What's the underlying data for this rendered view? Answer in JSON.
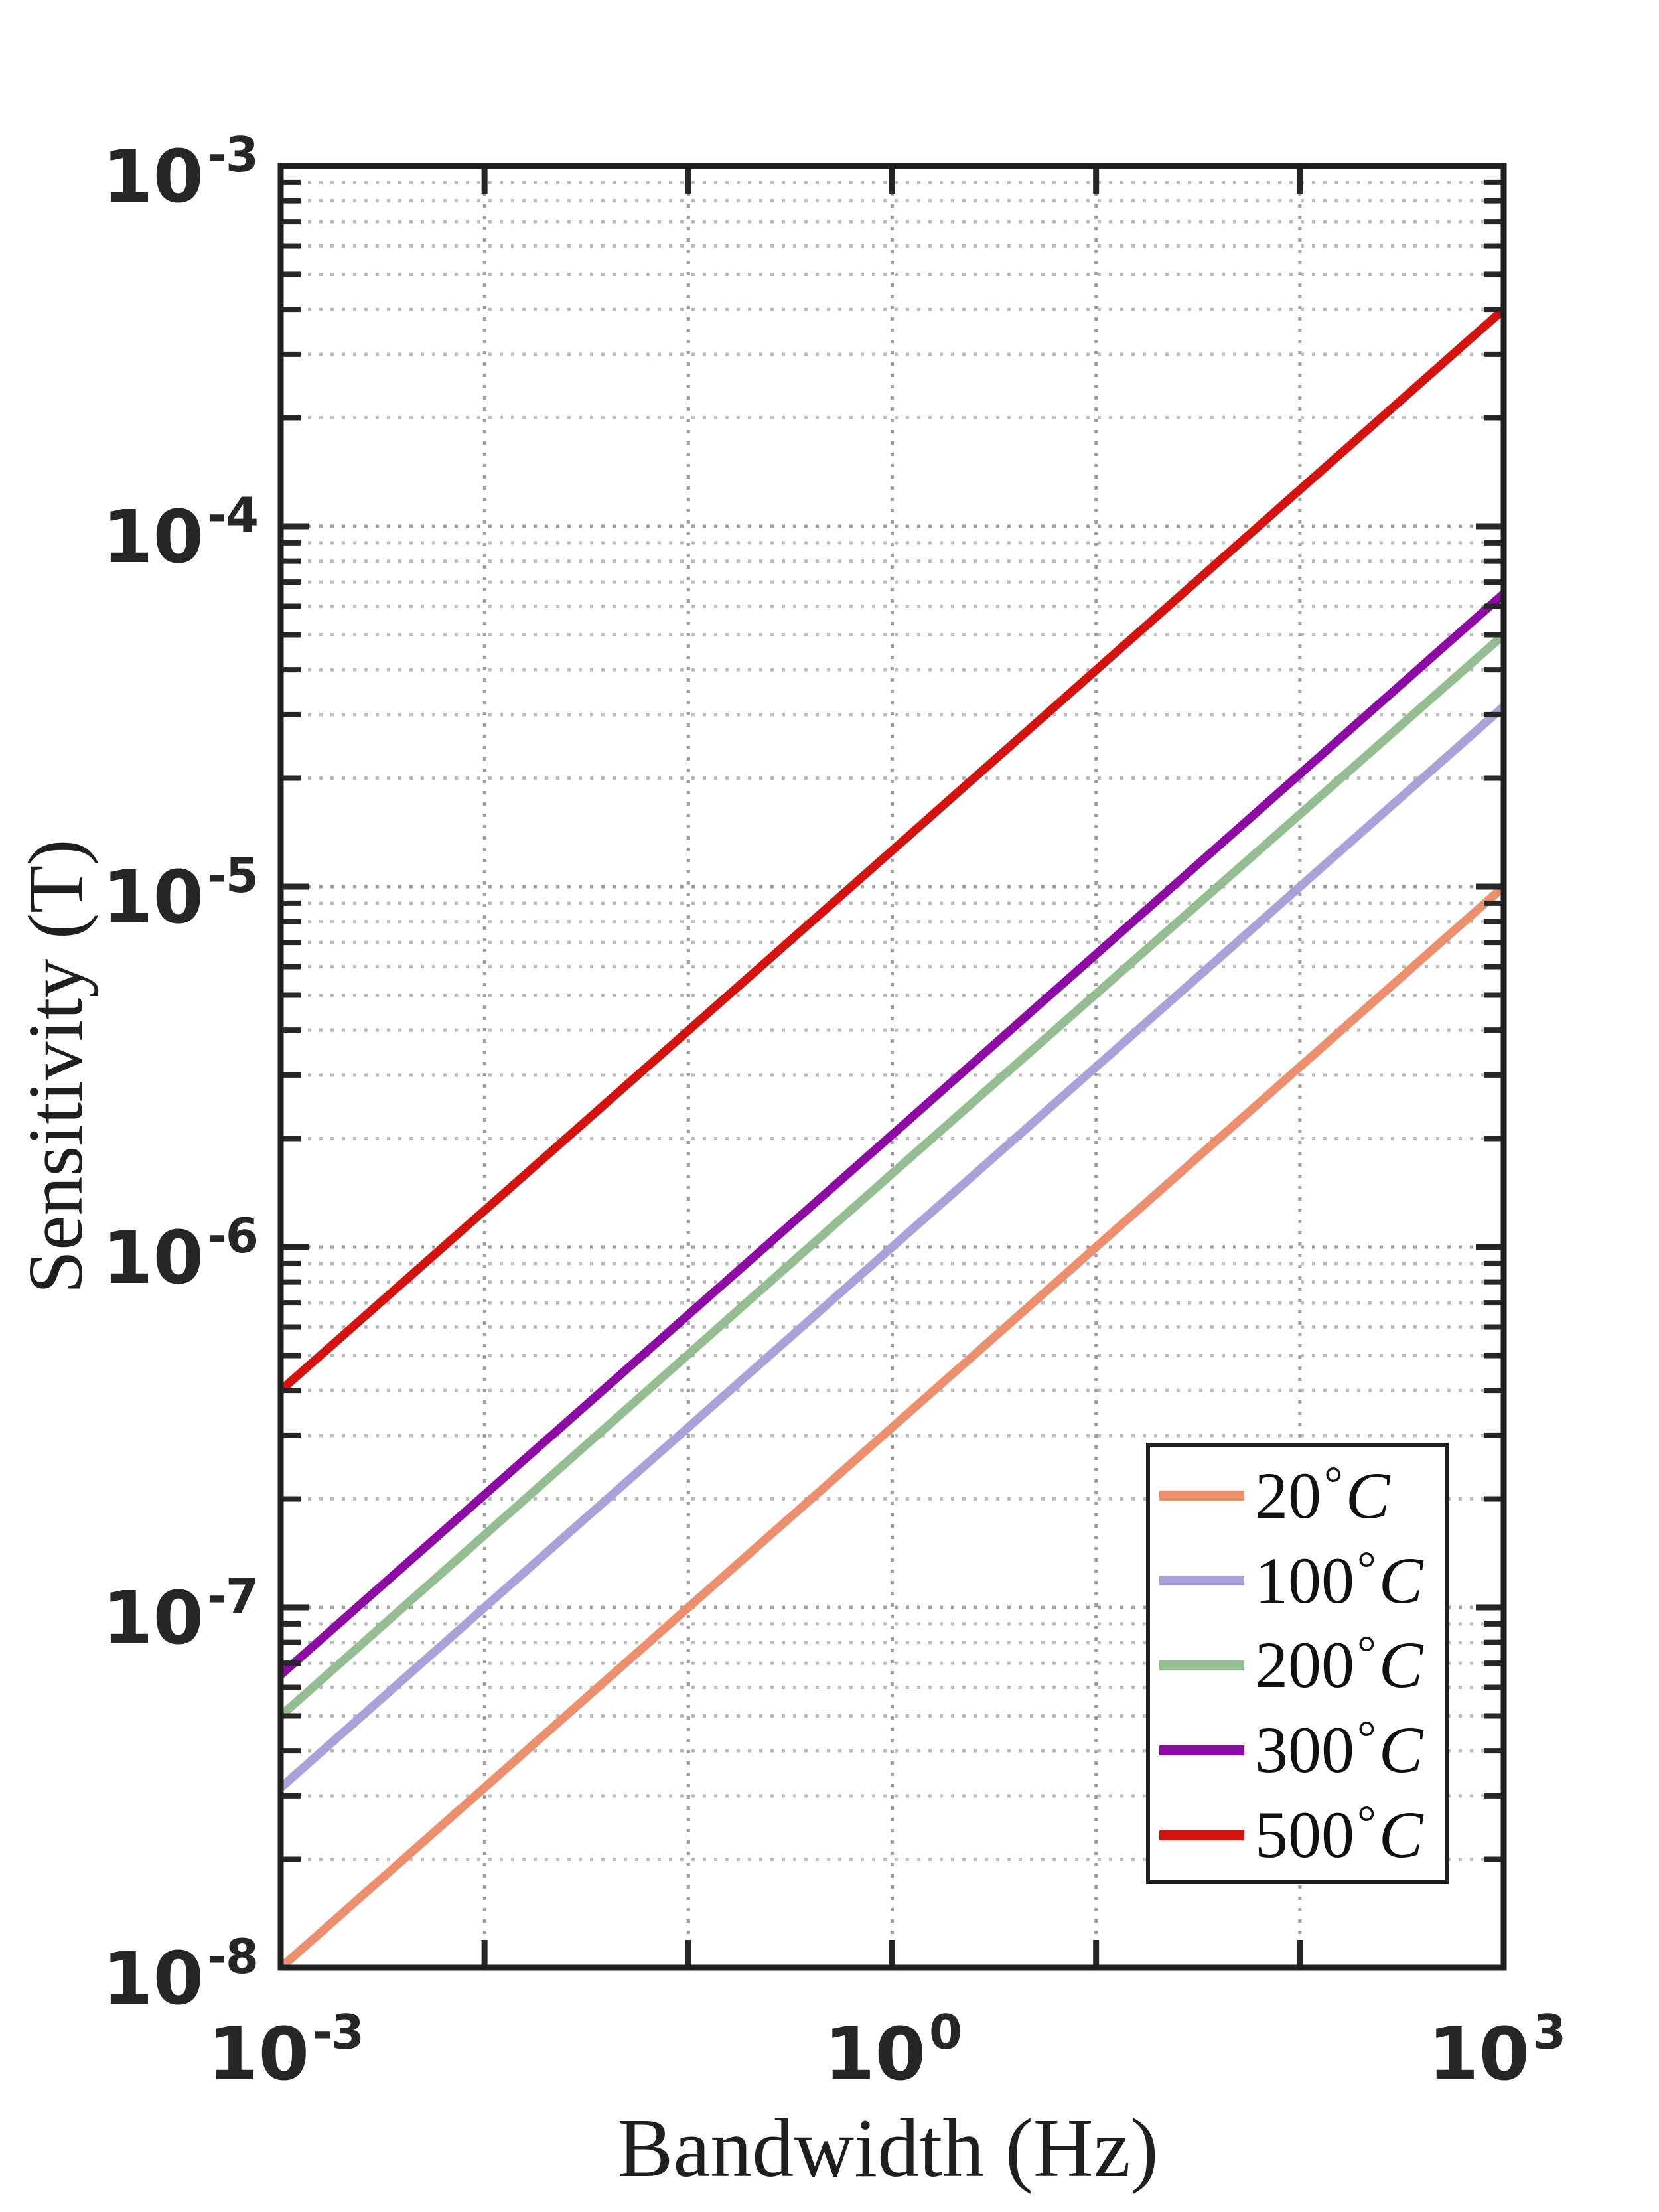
{
  "axes": {
    "x": {
      "label": "Bandwidth (Hz)",
      "ticks": [
        {
          "base": "10",
          "exp": "-3"
        },
        {
          "base": "10",
          "exp": "0"
        },
        {
          "base": "10",
          "exp": "3"
        }
      ]
    },
    "y": {
      "label": "Sensitivity (T)",
      "ticks": [
        {
          "base": "10",
          "exp": "-3"
        },
        {
          "base": "10",
          "exp": "-4"
        },
        {
          "base": "10",
          "exp": "-5"
        },
        {
          "base": "10",
          "exp": "-6"
        },
        {
          "base": "10",
          "exp": "-7"
        },
        {
          "base": "10",
          "exp": "-8"
        }
      ]
    }
  },
  "legend": {
    "degree_symbol": "°",
    "celsius": "C",
    "items": [
      {
        "value": "20"
      },
      {
        "value": "100"
      },
      {
        "value": "200"
      },
      {
        "value": "300"
      },
      {
        "value": "500"
      }
    ]
  },
  "chart_data": {
    "type": "line",
    "title": "",
    "xlabel": "Bandwidth (Hz)",
    "ylabel": "Sensitivity (T)",
    "x_axis": {
      "scale": "log",
      "range": [
        0.001,
        1000
      ],
      "tick_labels": [
        "10^-3",
        "10^0",
        "10^3"
      ]
    },
    "y_axis": {
      "scale": "log",
      "range": [
        1e-08,
        0.001
      ],
      "tick_labels": [
        "10^-8",
        "10^-7",
        "10^-6",
        "10^-5",
        "10^-4",
        "10^-3"
      ]
    },
    "grid": "on, dotted major and minor (log decades)",
    "legend_position": "lower right",
    "loglog_slope": 0.5,
    "x": [
      0.001,
      1,
      1000
    ],
    "series": [
      {
        "name": "20°C",
        "color": "#EC8F6E",
        "values": [
          1e-08,
          3.16e-07,
          1e-05
        ]
      },
      {
        "name": "100°C",
        "color": "#ACA0D9",
        "values": [
          3.16e-08,
          1e-06,
          3.16e-05
        ]
      },
      {
        "name": "200°C",
        "color": "#95BD92",
        "values": [
          5e-08,
          1.6e-06,
          5e-05
        ]
      },
      {
        "name": "300°C",
        "color": "#8B0BA3",
        "values": [
          6.5e-08,
          2.05e-06,
          6.5e-05
        ]
      },
      {
        "name": "500°C",
        "color": "#D31310",
        "values": [
          4e-07,
          1.26e-05,
          0.0004
        ]
      }
    ]
  }
}
